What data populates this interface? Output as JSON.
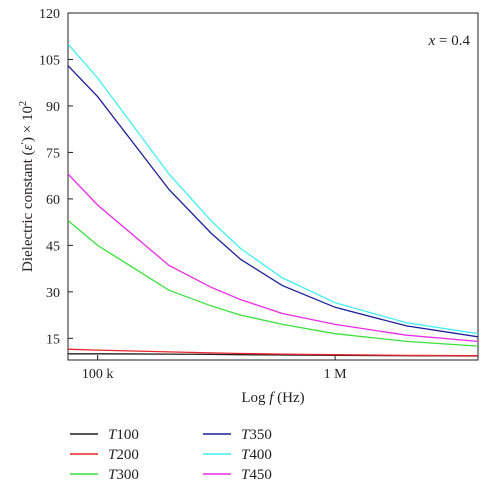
{
  "chart_data": {
    "type": "line",
    "xlabel": "Log f (Hz)",
    "xlabel_parts": {
      "prefix": "Log ",
      "var": "f",
      "suffix": " (Hz)"
    },
    "ylabel": "Dielectric constant (ε′) × 10²",
    "ylabel_parts": {
      "main": "Dielectric constant (",
      "var": "ε",
      "prime": "′",
      "mid": ") × 10",
      "sup": "2"
    },
    "annotation": "x = 0.4",
    "annotation_parts": {
      "var": "x",
      "rest": " = 0.4"
    },
    "x_scale": "log",
    "xlim": [
      75000,
      4000000
    ],
    "ylim": [
      8,
      120
    ],
    "x_ticks": [
      {
        "value": 100000,
        "label": "100 k"
      },
      {
        "value": 1000000,
        "label": "1 M"
      }
    ],
    "y_ticks": [
      {
        "value": 15,
        "label": "15"
      },
      {
        "value": 30,
        "label": "30"
      },
      {
        "value": 45,
        "label": "45"
      },
      {
        "value": 60,
        "label": "60"
      },
      {
        "value": 75,
        "label": "75"
      },
      {
        "value": 90,
        "label": "90"
      },
      {
        "value": 105,
        "label": "105"
      },
      {
        "value": 120,
        "label": "120"
      }
    ],
    "legend_placement": "bottom",
    "grid": false,
    "x": [
      75000,
      100000,
      200000,
      300000,
      400000,
      600000,
      1000000,
      2000000,
      4000000
    ],
    "series": [
      {
        "name": "T100",
        "name_var": "T",
        "name_num": "100",
        "color": "#231f20",
        "values": [
          10.0,
          10.0,
          9.9,
          9.8,
          9.7,
          9.6,
          9.5,
          9.4,
          9.3
        ]
      },
      {
        "name": "T200",
        "name_var": "T",
        "name_num": "200",
        "color": "#e8262b",
        "values": [
          11.5,
          11.2,
          10.6,
          10.3,
          10.1,
          9.9,
          9.7,
          9.5,
          9.4
        ]
      },
      {
        "name": "T300",
        "name_var": "T",
        "name_num": "300",
        "color": "#39e23a",
        "values": [
          53.0,
          45.0,
          30.5,
          25.5,
          22.5,
          19.5,
          16.5,
          14.0,
          12.5
        ]
      },
      {
        "name": "T350",
        "name_var": "T",
        "name_num": "350",
        "color": "#1b1f9a",
        "values": [
          103.0,
          93.0,
          63.0,
          49.0,
          40.5,
          32.0,
          25.0,
          19.0,
          15.5
        ]
      },
      {
        "name": "T400",
        "name_var": "T",
        "name_num": "400",
        "color": "#3ff0f2",
        "values": [
          110.0,
          99.0,
          68.0,
          53.0,
          44.0,
          34.5,
          26.5,
          20.0,
          16.5
        ]
      },
      {
        "name": "T450",
        "name_var": "T",
        "name_num": "450",
        "color": "#ea2be8",
        "values": [
          68.0,
          58.0,
          38.5,
          31.5,
          27.5,
          23.0,
          19.5,
          16.0,
          14.0
        ]
      }
    ]
  }
}
